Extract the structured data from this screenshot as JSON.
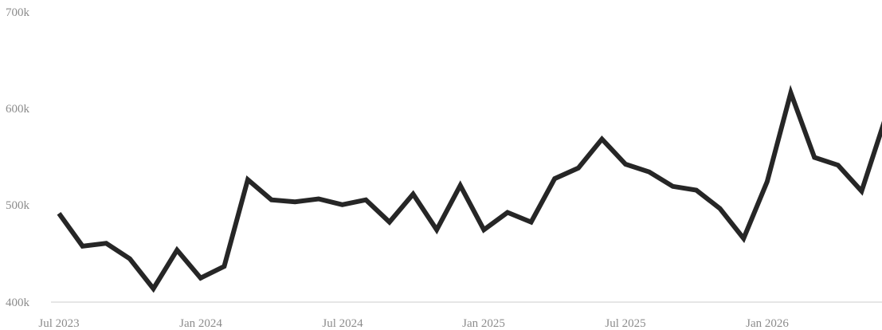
{
  "chart_data": {
    "type": "line",
    "title": "",
    "xlabel": "",
    "ylabel": "",
    "x_ticks": [
      "Jul 2023",
      "Jan 2024",
      "Jul 2024",
      "Jan 2025",
      "Jul 2025",
      "Jan 2026"
    ],
    "y_ticks": [
      "400k",
      "500k",
      "600k",
      "700k"
    ],
    "ylim": [
      400000,
      700000
    ],
    "xlim": [
      "2023-06",
      "2026-07"
    ],
    "grid": false,
    "line_color": "#262626",
    "axis_color": "#cccccc",
    "series": [
      {
        "x": [
          "2023-07",
          "2023-08",
          "2023-09",
          "2023-10",
          "2023-11",
          "2023-12",
          "2024-01",
          "2024-02",
          "2024-03",
          "2024-04",
          "2024-05",
          "2024-06",
          "2024-07",
          "2024-08",
          "2024-09",
          "2024-10",
          "2024-11",
          "2024-12",
          "2025-01",
          "2025-02",
          "2025-03",
          "2025-04",
          "2025-05",
          "2025-06",
          "2025-07",
          "2025-08",
          "2025-09",
          "2025-10",
          "2025-11",
          "2025-12",
          "2026-01",
          "2026-02",
          "2026-03",
          "2026-04",
          "2026-05",
          "2026-06"
        ],
        "values": [
          492000,
          458000,
          461000,
          445000,
          414000,
          454000,
          425000,
          437000,
          527000,
          506000,
          504000,
          507000,
          501000,
          506000,
          483000,
          512000,
          475000,
          521000,
          475000,
          493000,
          483000,
          528000,
          539000,
          569000,
          543000,
          535000,
          520000,
          516000,
          497000,
          466000,
          525000,
          617000,
          550000,
          542000,
          515000,
          590000
        ]
      }
    ]
  }
}
